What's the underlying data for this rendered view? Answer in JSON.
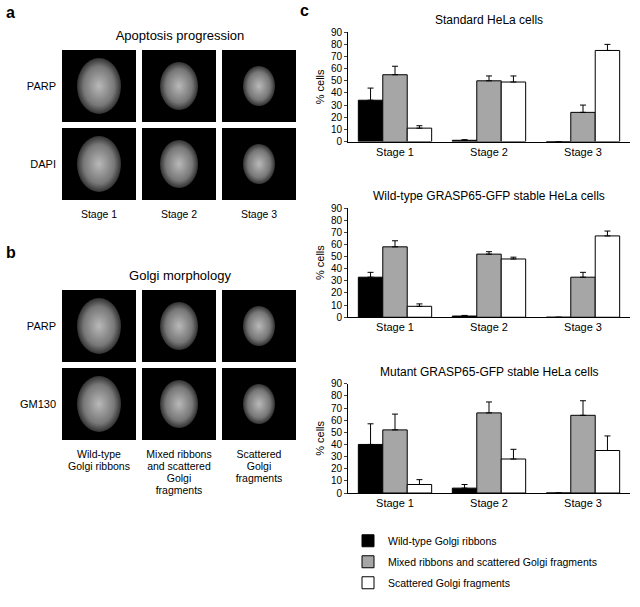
{
  "panels": [
    {
      "letter": "a",
      "title": "Apoptosis progression",
      "rows": [
        "PARP",
        "DAPI"
      ],
      "columns": [
        "Stage 1",
        "Stage 2",
        "Stage 3"
      ]
    },
    {
      "letter": "b",
      "title": "Golgi morphology",
      "rows": [
        "PARP",
        "GM130"
      ],
      "columns": [
        "Wild-type Golgi ribbons",
        "Mixed ribbons and scattered Golgi fragments",
        "Scattered Golgi fragments"
      ]
    }
  ],
  "chart_panel_letter": "c",
  "chart_data": [
    {
      "type": "bar",
      "title": "Standard HeLa cells",
      "categories": [
        "Stage 1",
        "Stage 2",
        "Stage 3"
      ],
      "ylabel": "% cells",
      "ylim": [
        0,
        90
      ],
      "yticks": [
        0,
        10,
        20,
        30,
        40,
        50,
        60,
        70,
        80,
        90
      ],
      "legend": "bottom left",
      "series": [
        {
          "name": "Wild-type Golgi ribbons",
          "color": "#000000",
          "values": [
            34,
            1,
            0
          ],
          "error": [
            10,
            0.5,
            0
          ]
        },
        {
          "name": "Mixed ribbons and scattered Golgi fragments",
          "color": "#a6a6a6",
          "values": [
            55,
            50,
            24
          ],
          "error": [
            7,
            4,
            6
          ]
        },
        {
          "name": "Scattered Golgi fragments",
          "color": "#ffffff",
          "values": [
            11,
            49,
            75
          ],
          "error": [
            2,
            5,
            5
          ]
        }
      ]
    },
    {
      "type": "bar",
      "title": "Wild-type GRASP65-GFP stable HeLa cells",
      "categories": [
        "Stage 1",
        "Stage 2",
        "Stage 3"
      ],
      "ylabel": "% cells",
      "ylim": [
        0,
        90
      ],
      "yticks": [
        0,
        10,
        20,
        30,
        40,
        50,
        60,
        70,
        80,
        90
      ],
      "series": [
        {
          "name": "Wild-type Golgi ribbons",
          "color": "#000000",
          "values": [
            33,
            1,
            0
          ],
          "error": [
            4,
            0.5,
            0
          ]
        },
        {
          "name": "Mixed ribbons and scattered Golgi fragments",
          "color": "#a6a6a6",
          "values": [
            58,
            52,
            33
          ],
          "error": [
            5,
            2,
            4
          ]
        },
        {
          "name": "Scattered Golgi fragments",
          "color": "#ffffff",
          "values": [
            9,
            48,
            67
          ],
          "error": [
            2,
            1.5,
            4
          ]
        }
      ]
    },
    {
      "type": "bar",
      "title": "Mutant GRASP65-GFP stable HeLa cells",
      "categories": [
        "Stage 1",
        "Stage 2",
        "Stage 3"
      ],
      "ylabel": "% cells",
      "ylim": [
        0,
        90
      ],
      "yticks": [
        0,
        10,
        20,
        30,
        40,
        50,
        60,
        70,
        80,
        90
      ],
      "series": [
        {
          "name": "Wild-type Golgi ribbons",
          "color": "#000000",
          "values": [
            40,
            4,
            0
          ],
          "error": [
            17,
            3,
            0
          ]
        },
        {
          "name": "Mixed ribbons and scattered Golgi fragments",
          "color": "#a6a6a6",
          "values": [
            52,
            66,
            64
          ],
          "error": [
            13,
            9,
            12
          ]
        },
        {
          "name": "Scattered Golgi fragments",
          "color": "#ffffff",
          "values": [
            7,
            28,
            35
          ],
          "error": [
            4,
            8,
            12
          ]
        }
      ]
    }
  ]
}
